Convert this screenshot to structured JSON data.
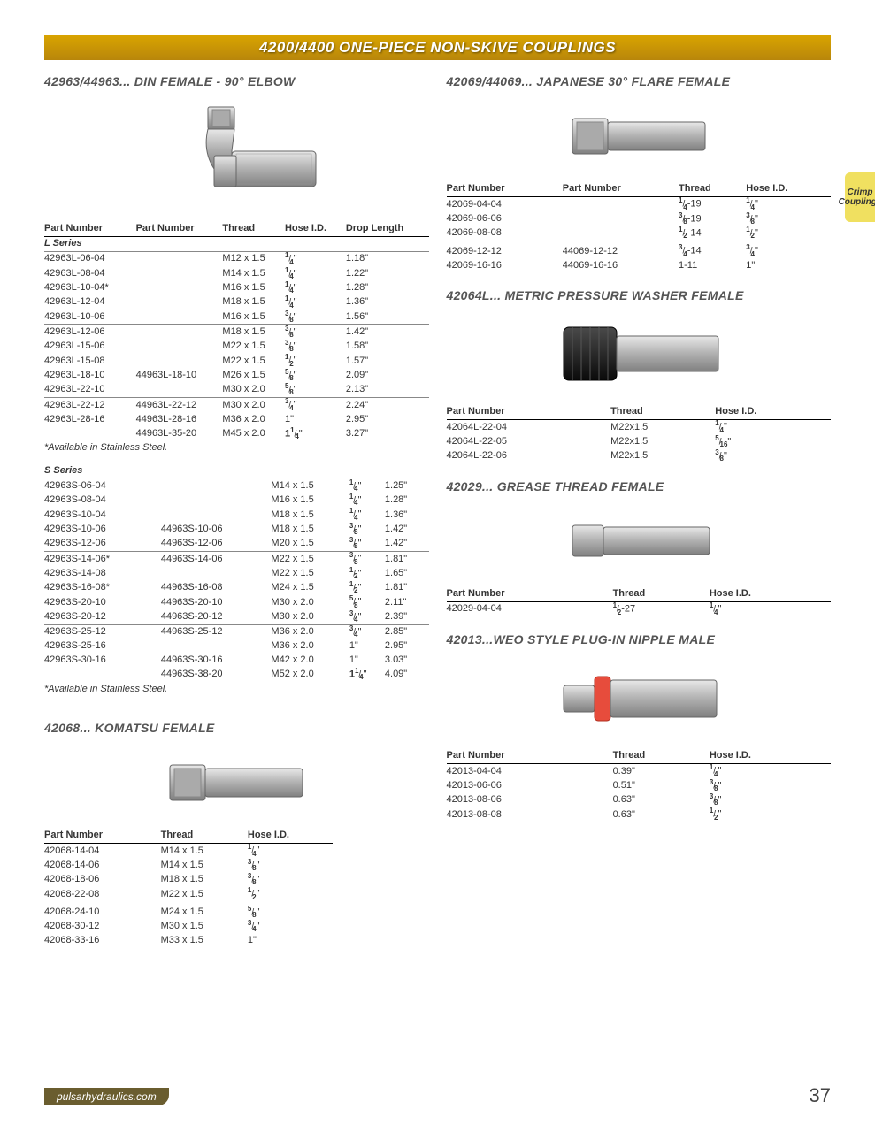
{
  "banner": "4200/4400 ONE-PIECE NON-SKIVE COUPLINGS",
  "side_tab_line1": "Crimp",
  "side_tab_line2": "Couplings",
  "footer": "pulsarhydraulics.com",
  "page_number": "37",
  "left": {
    "s1": {
      "title": "42963/44963... DIN FEMALE - 90° ELBOW",
      "headers": [
        "Part Number",
        "Part Number",
        "Thread",
        "Hose I.D.",
        "Drop Length"
      ],
      "series1": "L Series",
      "rows1": [
        [
          "42963L-06-04",
          "",
          "M12 x 1.5",
          "1/4\"",
          "1.18\""
        ],
        [
          "42963L-08-04",
          "",
          "M14 x 1.5",
          "1/4\"",
          "1.22\""
        ],
        [
          "42963L-10-04*",
          "",
          "M16 x 1.5",
          "1/4\"",
          "1.28\""
        ],
        [
          "42963L-12-04",
          "",
          "M18 x 1.5",
          "1/4\"",
          "1.36\""
        ],
        [
          "42963L-10-06",
          "",
          "M16 x 1.5",
          "3/8\"",
          "1.56\""
        ]
      ],
      "rows2": [
        [
          "42963L-12-06",
          "",
          "M18 x 1.5",
          "3/8\"",
          "1.42\""
        ],
        [
          "42963L-15-06",
          "",
          "M22 x 1.5",
          "3/8\"",
          "1.58\""
        ],
        [
          "42963L-15-08",
          "",
          "M22 x 1.5",
          "1/2\"",
          "1.57\""
        ],
        [
          "42963L-18-10",
          "44963L-18-10",
          "M26 x 1.5",
          "5/8\"",
          "2.09\""
        ],
        [
          "42963L-22-10",
          "",
          "M30 x 2.0",
          "5/8\"",
          "2.13\""
        ]
      ],
      "rows3": [
        [
          "42963L-22-12",
          "44963L-22-12",
          "M30 x 2.0",
          "3/4\"",
          "2.24\""
        ],
        [
          "42963L-28-16",
          "44963L-28-16",
          "M36 x 2.0",
          "1\"",
          "2.95\""
        ],
        [
          "",
          "44963L-35-20",
          "M45 x 2.0",
          "11/4\"",
          "3.27\""
        ]
      ],
      "footnote1": "*Available in Stainless Steel.",
      "series2": "S Series",
      "rows4": [
        [
          "42963S-06-04",
          "",
          "M14 x 1.5",
          "1/4\"",
          "1.25\""
        ],
        [
          "42963S-08-04",
          "",
          "M16 x 1.5",
          "1/4\"",
          "1.28\""
        ],
        [
          "42963S-10-04",
          "",
          "M18 x 1.5",
          "1/4\"",
          "1.36\""
        ],
        [
          "42963S-10-06",
          "44963S-10-06",
          "M18 x 1.5",
          "3/8\"",
          "1.42\""
        ],
        [
          "42963S-12-06",
          "44963S-12-06",
          "M20 x 1.5",
          "3/8\"",
          "1.42\""
        ]
      ],
      "rows5": [
        [
          "42963S-14-06*",
          "44963S-14-06",
          "M22 x 1.5",
          "3/8\"",
          "1.81\""
        ],
        [
          "42963S-14-08",
          "",
          "M22 x 1.5",
          "1/2\"",
          "1.65\""
        ],
        [
          "42963S-16-08*",
          "44963S-16-08",
          "M24 x 1.5",
          "1/2\"",
          "1.81\""
        ],
        [
          "42963S-20-10",
          "44963S-20-10",
          "M30 x 2.0",
          "5/8\"",
          "2.11\""
        ],
        [
          "42963S-20-12",
          "44963S-20-12",
          "M30 x 2.0",
          "3/4\"",
          "2.39\""
        ]
      ],
      "rows6": [
        [
          "42963S-25-12",
          "44963S-25-12",
          "M36 x 2.0",
          "3/4\"",
          "2.85\""
        ],
        [
          "42963S-25-16",
          "",
          "M36 x 2.0",
          "1\"",
          "2.95\""
        ],
        [
          "42963S-30-16",
          "44963S-30-16",
          "M42 x 2.0",
          "1\"",
          "3.03\""
        ],
        [
          "",
          "44963S-38-20",
          "M52 x 2.0",
          "11/4\"",
          "4.09\""
        ]
      ],
      "footnote2": "*Available in Stainless Steel."
    },
    "s2": {
      "title": "42068... KOMATSU FEMALE",
      "headers": [
        "Part Number",
        "Thread",
        "Hose I.D."
      ],
      "rows1": [
        [
          "42068-14-04",
          "M14 x 1.5",
          "1/4\""
        ],
        [
          "42068-14-06",
          "M14 x 1.5",
          "3/8\""
        ],
        [
          "42068-18-06",
          "M18 x 1.5",
          "3/8\""
        ],
        [
          "42068-22-08",
          "M22 x 1.5",
          "1/2\""
        ]
      ],
      "rows2": [
        [
          "42068-24-10",
          "M24 x 1.5",
          "5/8\""
        ],
        [
          "42068-30-12",
          "M30 x 1.5",
          "3/4\""
        ],
        [
          "42068-33-16",
          "M33 x 1.5",
          "1\""
        ]
      ]
    }
  },
  "right": {
    "s1": {
      "title": "42069/44069...  JAPANESE 30° FLARE FEMALE",
      "headers": [
        "Part Number",
        "Part Number",
        "Thread",
        "Hose I.D."
      ],
      "rows1": [
        [
          "42069-04-04",
          "",
          "1/4-19",
          "1/4\""
        ],
        [
          "42069-06-06",
          "",
          "3/8-19",
          "3/8\""
        ],
        [
          "42069-08-08",
          "",
          "1/2-14",
          "1/2\""
        ]
      ],
      "rows2": [
        [
          "42069-12-12",
          "44069-12-12",
          "3/4-14",
          "3/4\""
        ],
        [
          "42069-16-16",
          "44069-16-16",
          "1-11",
          "1\""
        ]
      ]
    },
    "s2": {
      "title": "42064L...  METRIC PRESSURE WASHER FEMALE",
      "headers": [
        "Part Number",
        "Thread",
        "Hose I.D."
      ],
      "rows": [
        [
          "42064L-22-04",
          "M22x1.5",
          "1/4\""
        ],
        [
          "42064L-22-05",
          "M22x1.5",
          "5/16\""
        ],
        [
          "42064L-22-06",
          "M22x1.5",
          "3/8\""
        ]
      ]
    },
    "s3": {
      "title": "42029... GREASE THREAD FEMALE",
      "headers": [
        "Part Number",
        "Thread",
        "Hose I.D."
      ],
      "rows": [
        [
          "42029-04-04",
          "1/2-27",
          "1/4\""
        ]
      ]
    },
    "s4": {
      "title": "42013...WEO STYLE PLUG-IN NIPPLE MALE",
      "headers": [
        "Part Number",
        "Thread",
        "Hose I.D."
      ],
      "rows": [
        [
          "42013-04-04",
          "0.39\"",
          "1/4\""
        ],
        [
          "42013-06-06",
          "0.51\"",
          "3/8\""
        ],
        [
          "42013-08-06",
          "0.63\"",
          "3/8\""
        ],
        [
          "42013-08-08",
          "0.63\"",
          "1/2\""
        ]
      ]
    }
  },
  "colors": {
    "banner_bg": "#c08f0a",
    "banner_text": "#ffffff",
    "text": "#333333",
    "rule": "#000000",
    "subrule": "#888888",
    "tab_bg": "#f0e060",
    "footer_bg": "#6a5d2f",
    "metal_light": "#d8d8d8",
    "metal_dark": "#909090",
    "black_knob": "#2a2a2a",
    "red_ring": "#e74c3c"
  }
}
